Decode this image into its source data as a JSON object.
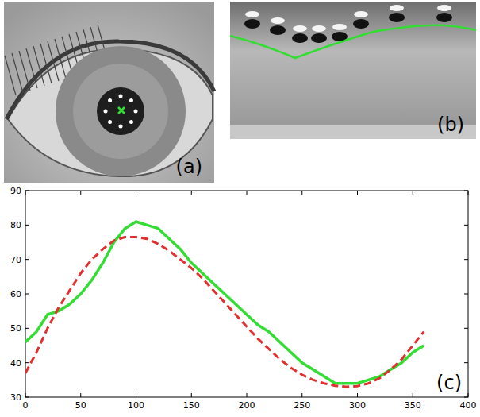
{
  "panels": [
    {
      "label": "(a)"
    },
    {
      "label": "(b)"
    }
  ],
  "chart_data": {
    "type": "line",
    "annotations": [
      "(c)"
    ],
    "x": [
      0,
      10,
      20,
      30,
      40,
      50,
      60,
      70,
      80,
      90,
      100,
      110,
      120,
      130,
      140,
      150,
      160,
      170,
      180,
      190,
      200,
      210,
      220,
      230,
      240,
      250,
      260,
      270,
      280,
      290,
      300,
      310,
      320,
      330,
      340,
      350,
      360
    ],
    "series": [
      {
        "color": "#33dd33",
        "line_style": "solid",
        "values": [
          46,
          49,
          54,
          55,
          57,
          60,
          64,
          69,
          75,
          79,
          81,
          80,
          79,
          76,
          73,
          69,
          66,
          63,
          60,
          57,
          54,
          51,
          49,
          46,
          43,
          40,
          38,
          36,
          34,
          34,
          34,
          35,
          36,
          38,
          40,
          43,
          45
        ]
      },
      {
        "color": "#e03030",
        "line_style": "dashed",
        "values": [
          37,
          43,
          50,
          56,
          61,
          66,
          70,
          73,
          75.5,
          76.5,
          76.5,
          76,
          74.5,
          72.5,
          70,
          67.5,
          64.5,
          61,
          57.5,
          54,
          50.5,
          47,
          44,
          41,
          38.5,
          36.5,
          35,
          34,
          33.3,
          33,
          33.2,
          34,
          35.5,
          38,
          41,
          45,
          49
        ]
      }
    ],
    "xlim": [
      0,
      400
    ],
    "ylim": [
      30,
      90
    ],
    "xticks": [
      0,
      50,
      100,
      150,
      200,
      250,
      300,
      350,
      400
    ],
    "yticks": [
      30,
      40,
      50,
      60,
      70,
      80,
      90
    ],
    "grid": false
  }
}
